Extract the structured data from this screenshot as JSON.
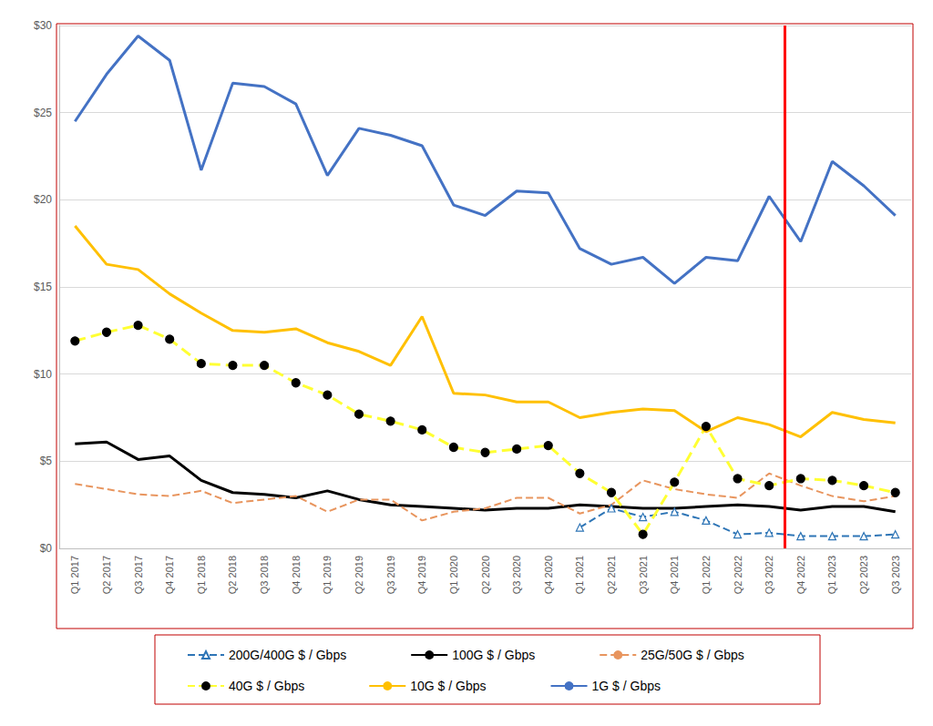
{
  "chart_data": {
    "type": "line",
    "categories": [
      "Q1 2017",
      "Q2 2017",
      "Q3 2017",
      "Q4 2017",
      "Q1 2018",
      "Q2 2018",
      "Q3 2018",
      "Q4 2018",
      "Q1 2019",
      "Q2 2019",
      "Q3 2019",
      "Q4 2019",
      "Q1 2020",
      "Q2 2020",
      "Q3 2020",
      "Q4 2020",
      "Q1 2021",
      "Q2 2021",
      "Q3 2021",
      "Q4 2021",
      "Q1 2022",
      "Q2 2022",
      "Q3 2022",
      "Q4 2022",
      "Q1 2023",
      "Q2 2023",
      "Q3 2023"
    ],
    "ylim": [
      0,
      30
    ],
    "yticks": [
      {
        "value": 0,
        "label": "$0"
      },
      {
        "value": 5,
        "label": "$5"
      },
      {
        "value": 10,
        "label": "$10"
      },
      {
        "value": 15,
        "label": "$15"
      },
      {
        "value": 20,
        "label": "$20"
      },
      {
        "value": 25,
        "label": "$25"
      },
      {
        "value": 30,
        "label": "$30"
      }
    ],
    "grid": true,
    "legend": "bottom",
    "series": [
      {
        "name": "200G/400G $ / Gbps",
        "color": "#2e75b6",
        "line_style": "dashed",
        "marker": "triangle",
        "values": [
          null,
          null,
          null,
          null,
          null,
          null,
          null,
          null,
          null,
          null,
          null,
          null,
          null,
          null,
          null,
          null,
          1.2,
          2.3,
          1.8,
          2.1,
          1.6,
          0.8,
          0.9,
          0.7,
          0.7,
          0.7,
          0.8
        ]
      },
      {
        "name": "100G $ / Gbps",
        "color": "#000000",
        "line_style": "solid",
        "marker": "none",
        "values": [
          6.0,
          6.1,
          5.1,
          5.3,
          3.9,
          3.2,
          3.1,
          2.9,
          3.3,
          2.8,
          2.5,
          2.4,
          2.3,
          2.2,
          2.3,
          2.3,
          2.5,
          2.4,
          2.3,
          2.3,
          2.4,
          2.5,
          2.4,
          2.2,
          2.4,
          2.4,
          2.1
        ]
      },
      {
        "name": "25G/50G $ / Gbps",
        "color": "#e8955e",
        "line_style": "dashed",
        "marker": "none",
        "values": [
          3.7,
          3.4,
          3.1,
          3.0,
          3.3,
          2.6,
          2.8,
          3.0,
          2.1,
          2.8,
          2.8,
          1.6,
          2.1,
          2.3,
          2.9,
          2.9,
          2.0,
          2.5,
          3.9,
          3.4,
          3.1,
          2.9,
          4.3,
          3.6,
          3.0,
          2.7,
          3.0
        ]
      },
      {
        "name": "40G $ / Gbps",
        "color": "#ffff33",
        "line_style": "dashed",
        "marker": "circle",
        "values": [
          11.9,
          12.4,
          12.8,
          12.0,
          10.6,
          10.5,
          10.5,
          9.5,
          8.8,
          7.7,
          7.3,
          6.8,
          5.8,
          5.5,
          5.7,
          5.9,
          4.3,
          3.2,
          0.8,
          3.8,
          7.0,
          4.0,
          3.6,
          4.0,
          3.9,
          3.6,
          3.2
        ]
      },
      {
        "name": "10G $ / Gbps",
        "color": "#ffc000",
        "line_style": "solid",
        "marker": "none",
        "values": [
          18.5,
          16.3,
          16.0,
          14.6,
          13.5,
          12.5,
          12.4,
          12.6,
          11.8,
          11.3,
          10.5,
          13.3,
          8.9,
          8.8,
          8.4,
          8.4,
          7.5,
          7.8,
          8.0,
          7.9,
          6.7,
          7.5,
          7.1,
          6.4,
          7.8,
          7.4,
          7.2
        ]
      },
      {
        "name": "1G $ / Gbps",
        "color": "#4472c4",
        "line_style": "solid",
        "marker": "none",
        "values": [
          24.5,
          27.2,
          29.4,
          28.0,
          21.7,
          26.7,
          26.5,
          25.5,
          21.4,
          24.1,
          23.7,
          23.1,
          19.7,
          19.1,
          20.5,
          20.4,
          17.2,
          16.3,
          16.7,
          15.2,
          16.7,
          16.5,
          20.2,
          17.6,
          22.2,
          20.8,
          19.1
        ]
      }
    ],
    "annotations": [
      {
        "type": "vline",
        "after": "Q3 2022",
        "color": "#ff0000"
      }
    ]
  }
}
